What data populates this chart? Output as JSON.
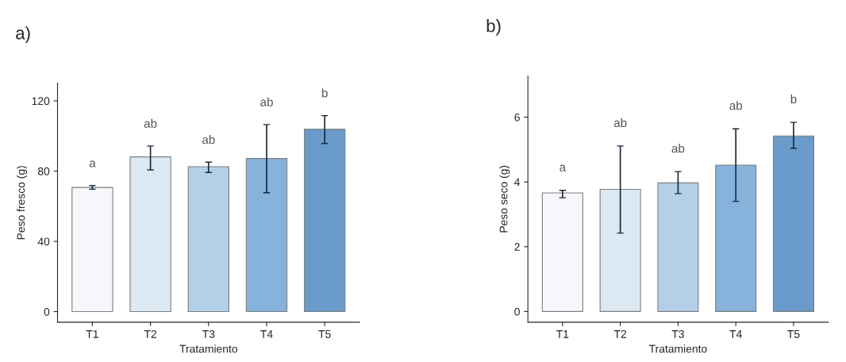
{
  "chart_data": [
    {
      "type": "bar",
      "title": "a)",
      "xlabel": "Tratamiento",
      "ylabel": "Peso fresco (g)",
      "categories": [
        "T1",
        "T2",
        "T3",
        "T4",
        "T5"
      ],
      "values": [
        70.7,
        88.1,
        82.5,
        87.2,
        103.8
      ],
      "errors": [
        [
          69.7,
          71.8
        ],
        [
          80.7,
          94.3
        ],
        [
          79.2,
          85.1
        ],
        [
          67.7,
          106.5
        ],
        [
          95.7,
          111.6
        ]
      ],
      "colors": [
        "#f7f7fb",
        "#dce8f2",
        "#b3d0e8",
        "#86b2dc",
        "#6a9bcb"
      ],
      "ylim": [
        -6,
        130
      ],
      "yticks": [
        0,
        40,
        80,
        120
      ],
      "grid": false,
      "legend": false,
      "annotations": [
        "a",
        "ab",
        "ab",
        "ab",
        "b"
      ]
    },
    {
      "type": "bar",
      "title": "b)",
      "xlabel": "Tratamiento",
      "ylabel": "Peso seco (g)",
      "categories": [
        "T1",
        "T2",
        "T3",
        "T4",
        "T5"
      ],
      "values": [
        3.66,
        3.77,
        3.97,
        4.52,
        5.42
      ],
      "errors": [
        [
          3.51,
          3.74
        ],
        [
          2.42,
          5.11
        ],
        [
          3.64,
          4.32
        ],
        [
          3.4,
          5.64
        ],
        [
          5.04,
          5.84
        ]
      ],
      "colors": [
        "#f7f7fb",
        "#dce8f2",
        "#b3d0e8",
        "#86b2dc",
        "#6a9bcb"
      ],
      "ylim": [
        -0.33,
        7.27
      ],
      "yticks": [
        0,
        2,
        4,
        6
      ],
      "grid": false,
      "legend": false,
      "annotations": [
        "a",
        "ab",
        "ab",
        "ab",
        "b"
      ]
    }
  ]
}
